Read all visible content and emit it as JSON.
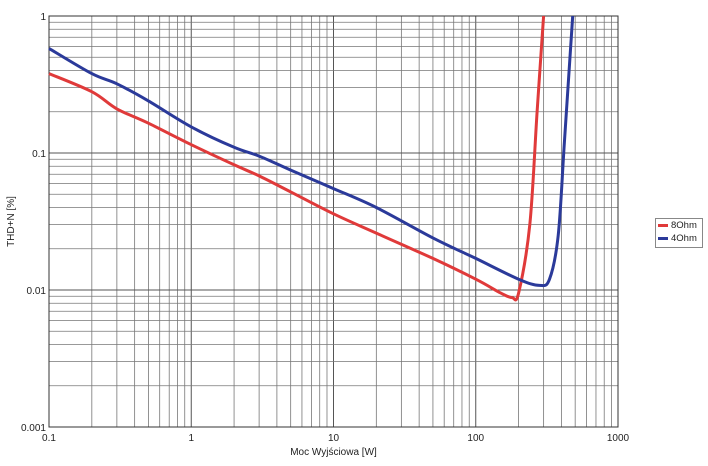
{
  "chart_data": {
    "type": "line",
    "title": "",
    "xlabel": "Moc Wyjściowa [W]",
    "ylabel": "THD+N [%]",
    "xscale": "log",
    "yscale": "log",
    "xlim": [
      0.1,
      1000
    ],
    "ylim": [
      0.001,
      1
    ],
    "x_tick_labels": [
      "0.1",
      "1",
      "10",
      "100",
      "1000"
    ],
    "y_tick_labels": [
      "0.001",
      "0.01",
      "0.1",
      "1"
    ],
    "grid": true,
    "legend_position": "right",
    "series": [
      {
        "name": "8Ohm",
        "color": "#e03a3a",
        "x": [
          0.1,
          0.2,
          0.3,
          0.5,
          1,
          2,
          3,
          5,
          10,
          20,
          50,
          100,
          150,
          180,
          200,
          240,
          270,
          300
        ],
        "y": [
          0.38,
          0.28,
          0.21,
          0.165,
          0.115,
          0.082,
          0.068,
          0.052,
          0.036,
          0.026,
          0.017,
          0.012,
          0.0095,
          0.0088,
          0.0095,
          0.03,
          0.2,
          1.0
        ]
      },
      {
        "name": "4Ohm",
        "color": "#2b3a9a",
        "x": [
          0.1,
          0.2,
          0.3,
          0.5,
          1,
          2,
          3,
          5,
          10,
          20,
          50,
          100,
          200,
          280,
          330,
          380,
          420,
          480
        ],
        "y": [
          0.58,
          0.38,
          0.32,
          0.24,
          0.155,
          0.11,
          0.095,
          0.075,
          0.055,
          0.04,
          0.024,
          0.017,
          0.012,
          0.0108,
          0.012,
          0.025,
          0.12,
          1.0
        ]
      }
    ]
  }
}
